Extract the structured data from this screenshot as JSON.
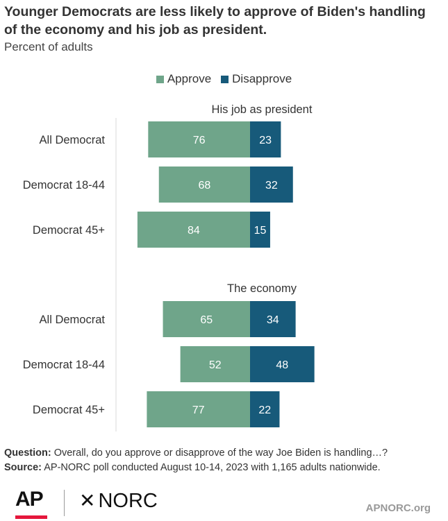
{
  "title": "Younger Democrats are less likely to approve of Biden's handling of the economy and his job as president.",
  "subtitle": "Percent of adults",
  "legend": {
    "approve": "Approve",
    "disapprove": "Disapprove"
  },
  "colors": {
    "approve": "#6fa58a",
    "disapprove": "#175a7a",
    "axis": "#d9d9d9"
  },
  "chart_data": {
    "type": "bar",
    "orientation": "horizontal-diverging",
    "groups": [
      {
        "title": "His job as president",
        "categories": [
          "All Democrat",
          "Democrat 18-44",
          "Democrat 45+"
        ],
        "series": [
          {
            "name": "Approve",
            "values": [
              76,
              68,
              84
            ]
          },
          {
            "name": "Disapprove",
            "values": [
              23,
              32,
              15
            ]
          }
        ]
      },
      {
        "title": "The economy",
        "categories": [
          "All Democrat",
          "Democrat 18-44",
          "Democrat 45+"
        ],
        "series": [
          {
            "name": "Approve",
            "values": [
              65,
              52,
              77
            ]
          },
          {
            "name": "Disapprove",
            "values": [
              34,
              48,
              22
            ]
          }
        ]
      }
    ],
    "legend_position": "top-center",
    "grid": false
  },
  "footer": {
    "question_label": "Question:",
    "question_text": "Overall, do you approve or disapprove of the way Joe Biden is handling…?",
    "source_label": "Source:",
    "source_text": "AP-NORC poll conducted August 10-14, 2023 with 1,165 adults nationwide."
  },
  "logos": {
    "ap": "AP",
    "norc_star": "✕",
    "norc": "NORC",
    "site": "APNORC.org"
  }
}
